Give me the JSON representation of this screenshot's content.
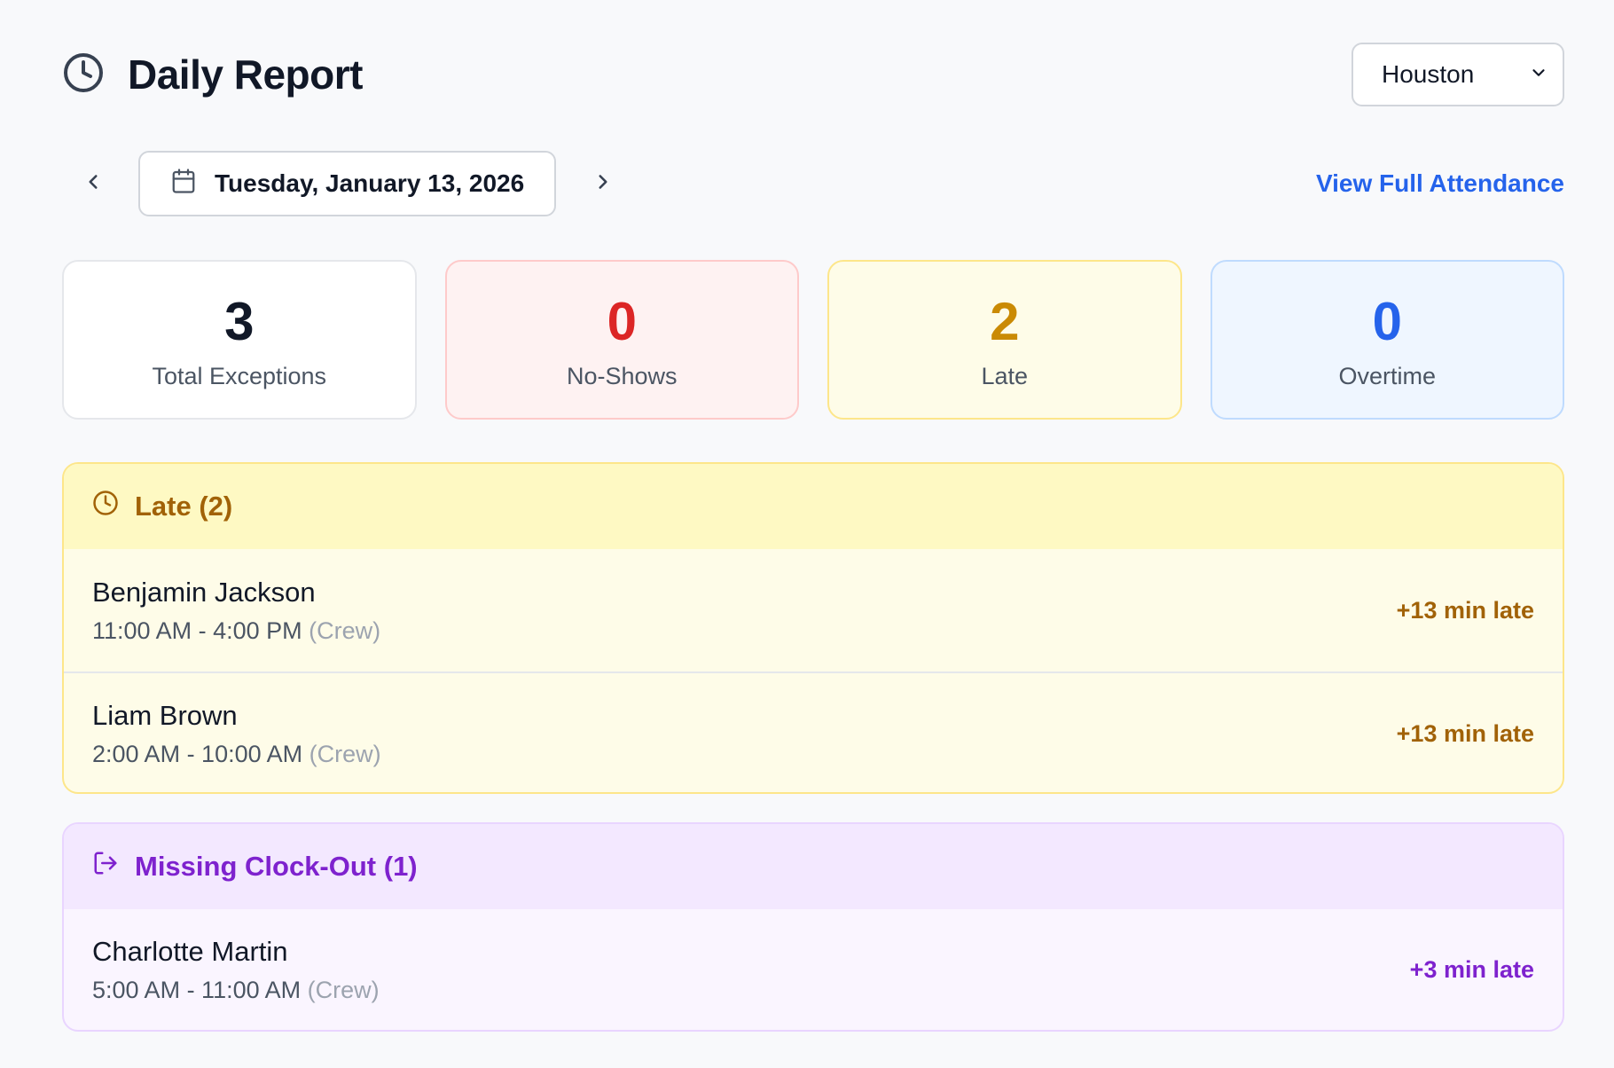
{
  "header": {
    "title": "Daily Report",
    "title_icon": "clock-icon",
    "location": {
      "selected": "Houston",
      "icon": "chevron-down-icon"
    }
  },
  "date_nav": {
    "date": "Tuesday, January 13, 2026",
    "link": "View Full Attendance"
  },
  "stats": [
    {
      "value": "3",
      "label": "Total Exceptions"
    },
    {
      "value": "0",
      "label": "No-Shows"
    },
    {
      "value": "2",
      "label": "Late"
    },
    {
      "value": "0",
      "label": "Overtime"
    }
  ],
  "sections": {
    "late": {
      "title": "Late (2)",
      "icon": "clock-icon",
      "rows": [
        {
          "name": "Benjamin Jackson",
          "time": "11:00 AM - 4:00 PM",
          "role": "(Crew)",
          "badge": "+13 min late"
        },
        {
          "name": "Liam Brown",
          "time": "2:00 AM - 10:00 AM",
          "role": "(Crew)",
          "badge": "+13 min late"
        }
      ]
    },
    "missing_clock_out": {
      "title": "Missing Clock-Out (1)",
      "icon": "log-out-icon",
      "rows": [
        {
          "name": "Charlotte Martin",
          "time": "5:00 AM - 11:00 AM",
          "role": "(Crew)",
          "badge": "+3 min late"
        }
      ]
    }
  },
  "colors": {
    "accent_blue": "#2563eb",
    "late_text": "#a16207",
    "missing_text": "#7e22ce",
    "no_show_red": "#dc2626"
  }
}
